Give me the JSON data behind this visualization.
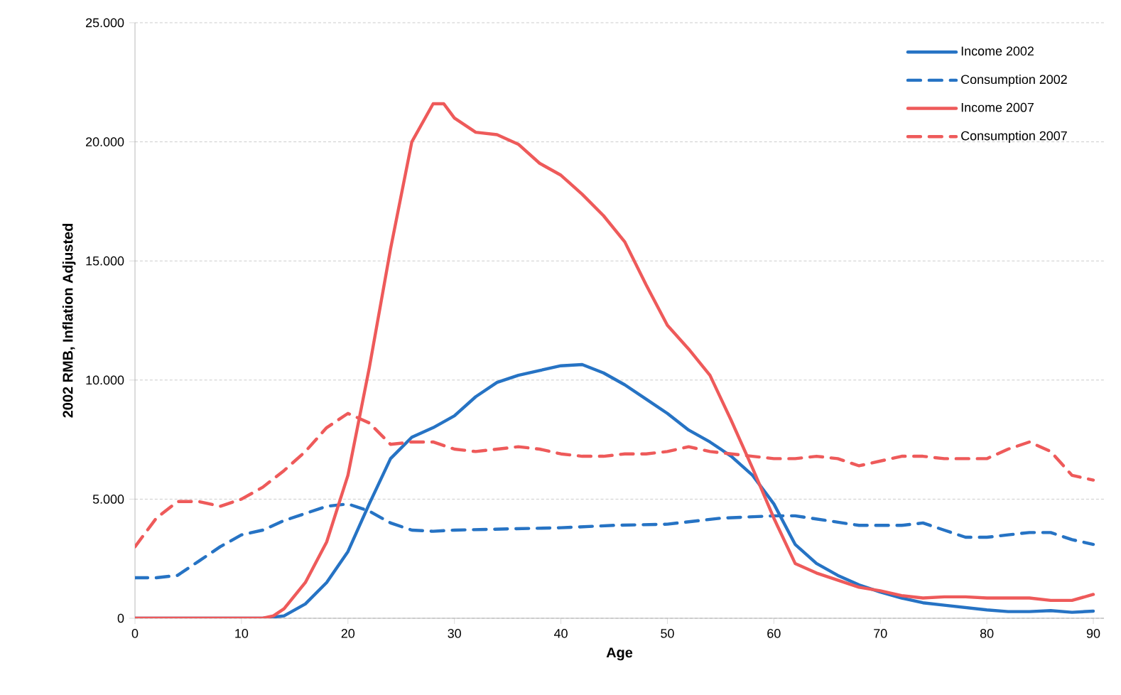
{
  "chart_data": {
    "type": "line",
    "xlabel": "Age",
    "ylabel": "2002 RMB, Inflation Adjusted",
    "xlim": [
      0,
      91
    ],
    "ylim": [
      0,
      25000
    ],
    "xticks": [
      0,
      10,
      20,
      30,
      40,
      50,
      60,
      70,
      80,
      90
    ],
    "yticks": [
      {
        "value": 0,
        "label": "0"
      },
      {
        "value": 5000,
        "label": "5.000"
      },
      {
        "value": 10000,
        "label": "10.000"
      },
      {
        "value": 15000,
        "label": "15.000"
      },
      {
        "value": 20000,
        "label": "20.000"
      },
      {
        "value": 25000,
        "label": "25.000"
      }
    ],
    "grid": "y",
    "legend": "top right",
    "series": [
      {
        "name": "Income 2002",
        "color": "#2673c4",
        "line_style": "solid",
        "x": [
          0,
          12,
          14,
          16,
          18,
          20,
          22,
          24,
          26,
          28,
          30,
          32,
          34,
          36,
          38,
          40,
          42,
          44,
          46,
          48,
          50,
          52,
          54,
          56,
          58,
          60,
          62,
          64,
          66,
          68,
          70,
          72,
          74,
          76,
          78,
          80,
          82,
          84,
          86,
          88,
          90
        ],
        "values": [
          0,
          0,
          100,
          600,
          1500,
          2800,
          4800,
          6700,
          7600,
          8000,
          8500,
          9300,
          9900,
          10200,
          10400,
          10600,
          10650,
          10300,
          9800,
          9200,
          8600,
          7900,
          7400,
          6800,
          6000,
          4800,
          3100,
          2300,
          1800,
          1400,
          1100,
          850,
          650,
          550,
          450,
          350,
          280,
          280,
          320,
          250,
          300
        ]
      },
      {
        "name": "Consumption 2002",
        "color": "#2673c4",
        "line_style": "dashed",
        "x": [
          0,
          2,
          4,
          6,
          8,
          10,
          12,
          14,
          16,
          18,
          20,
          22,
          24,
          26,
          28,
          30,
          35,
          40,
          45,
          50,
          55,
          60,
          62,
          65,
          68,
          72,
          74,
          76,
          78,
          80,
          82,
          84,
          86,
          88,
          90
        ],
        "values": [
          1700,
          1700,
          1800,
          2400,
          3000,
          3500,
          3700,
          4100,
          4400,
          4700,
          4800,
          4500,
          4000,
          3700,
          3650,
          3700,
          3750,
          3800,
          3900,
          3950,
          4200,
          4300,
          4300,
          4100,
          3900,
          3900,
          4000,
          3700,
          3400,
          3400,
          3500,
          3600,
          3600,
          3300,
          3100
        ]
      },
      {
        "name": "Income 2007",
        "color": "#ee5a5a",
        "line_style": "solid",
        "x": [
          0,
          12,
          13,
          14,
          16,
          18,
          20,
          22,
          24,
          26,
          28,
          29,
          30,
          32,
          34,
          36,
          38,
          40,
          42,
          44,
          46,
          48,
          50,
          52,
          54,
          56,
          58,
          60,
          62,
          64,
          66,
          68,
          70,
          72,
          74,
          76,
          78,
          80,
          82,
          84,
          86,
          88,
          90
        ],
        "values": [
          0,
          0,
          100,
          400,
          1500,
          3200,
          6000,
          10500,
          15500,
          20000,
          21600,
          21600,
          21000,
          20400,
          20300,
          19900,
          19100,
          18600,
          17800,
          16900,
          15800,
          14000,
          12300,
          11300,
          10200,
          8300,
          6300,
          4200,
          2300,
          1900,
          1600,
          1300,
          1150,
          950,
          850,
          900,
          900,
          850,
          850,
          850,
          750,
          750,
          1000
        ]
      },
      {
        "name": "Consumption 2007",
        "color": "#ee5a5a",
        "line_style": "dashed",
        "x": [
          0,
          2,
          4,
          6,
          8,
          10,
          12,
          14,
          16,
          18,
          20,
          22,
          24,
          26,
          28,
          30,
          32,
          34,
          36,
          38,
          40,
          42,
          44,
          46,
          48,
          50,
          52,
          54,
          56,
          58,
          60,
          62,
          64,
          66,
          68,
          70,
          72,
          74,
          76,
          78,
          80,
          82,
          84,
          86,
          88,
          90
        ],
        "values": [
          3000,
          4200,
          4900,
          4900,
          4700,
          5000,
          5500,
          6200,
          7000,
          8000,
          8600,
          8200,
          7300,
          7400,
          7400,
          7100,
          7000,
          7100,
          7200,
          7100,
          6900,
          6800,
          6800,
          6900,
          6900,
          7000,
          7200,
          7000,
          6900,
          6800,
          6700,
          6700,
          6800,
          6700,
          6400,
          6600,
          6800,
          6800,
          6700,
          6700,
          6700,
          7100,
          7400,
          7000,
          6000,
          5800
        ]
      }
    ]
  }
}
